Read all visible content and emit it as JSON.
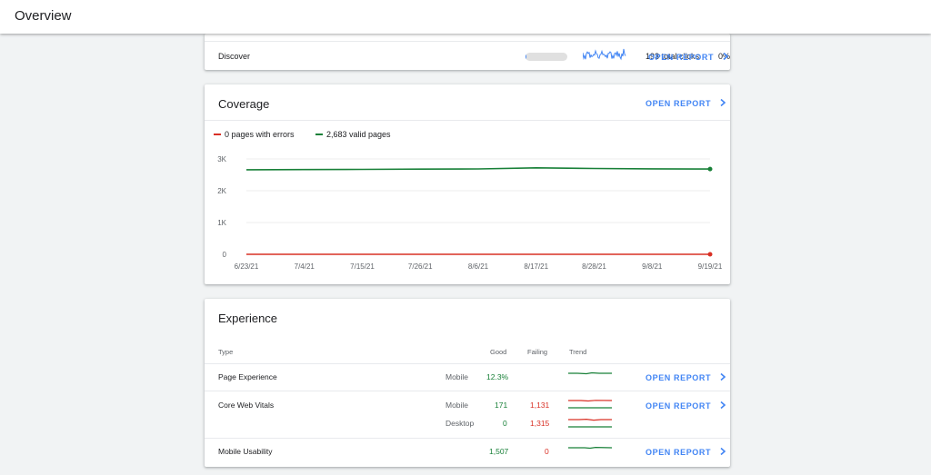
{
  "header": {
    "title": "Overview"
  },
  "discover": {
    "label": "Discover",
    "clicks": "193 total clicks",
    "percent": "0%",
    "bar_fraction": 0.01,
    "open_report": "OPEN REPORT",
    "spark_color": "#4285f4"
  },
  "coverage": {
    "title": "Coverage",
    "open_report": "OPEN REPORT",
    "legend": [
      {
        "label": "0 pages with errors",
        "color": "#d93025"
      },
      {
        "label": "2,683 valid pages",
        "color": "#188038"
      }
    ],
    "chart_data": {
      "type": "line",
      "x_ticks": [
        "6/23/21",
        "7/4/21",
        "7/15/21",
        "7/26/21",
        "8/6/21",
        "8/17/21",
        "8/28/21",
        "9/8/21",
        "9/19/21"
      ],
      "y_ticks": [
        "0",
        "1K",
        "2K",
        "3K"
      ],
      "ylim": [
        0,
        3000
      ],
      "grid": true,
      "series": [
        {
          "name": "0 pages with errors",
          "color": "#d93025",
          "values": [
            0,
            0,
            0,
            0,
            0,
            0,
            0,
            0,
            0
          ]
        },
        {
          "name": "2,683 valid pages",
          "color": "#188038",
          "values": [
            2660,
            2665,
            2670,
            2680,
            2685,
            2720,
            2700,
            2690,
            2683
          ]
        }
      ]
    }
  },
  "experience": {
    "title": "Experience",
    "columns": {
      "type": "Type",
      "good": "Good",
      "failing": "Failing",
      "trend": "Trend"
    },
    "rows": {
      "page_experience": {
        "type": "Page Experience",
        "device": "Mobile",
        "good": "12.3%",
        "open_report": "OPEN REPORT"
      },
      "cwv_mobile": {
        "type": "Core Web Vitals",
        "device": "Mobile",
        "good": "171",
        "failing": "1,131",
        "open_report": "OPEN REPORT"
      },
      "cwv_desktop": {
        "device": "Desktop",
        "good": "0",
        "failing": "1,315"
      },
      "mobile_usability": {
        "type": "Mobile Usability",
        "good": "1,507",
        "failing": "0",
        "open_report": "OPEN REPORT"
      }
    }
  }
}
